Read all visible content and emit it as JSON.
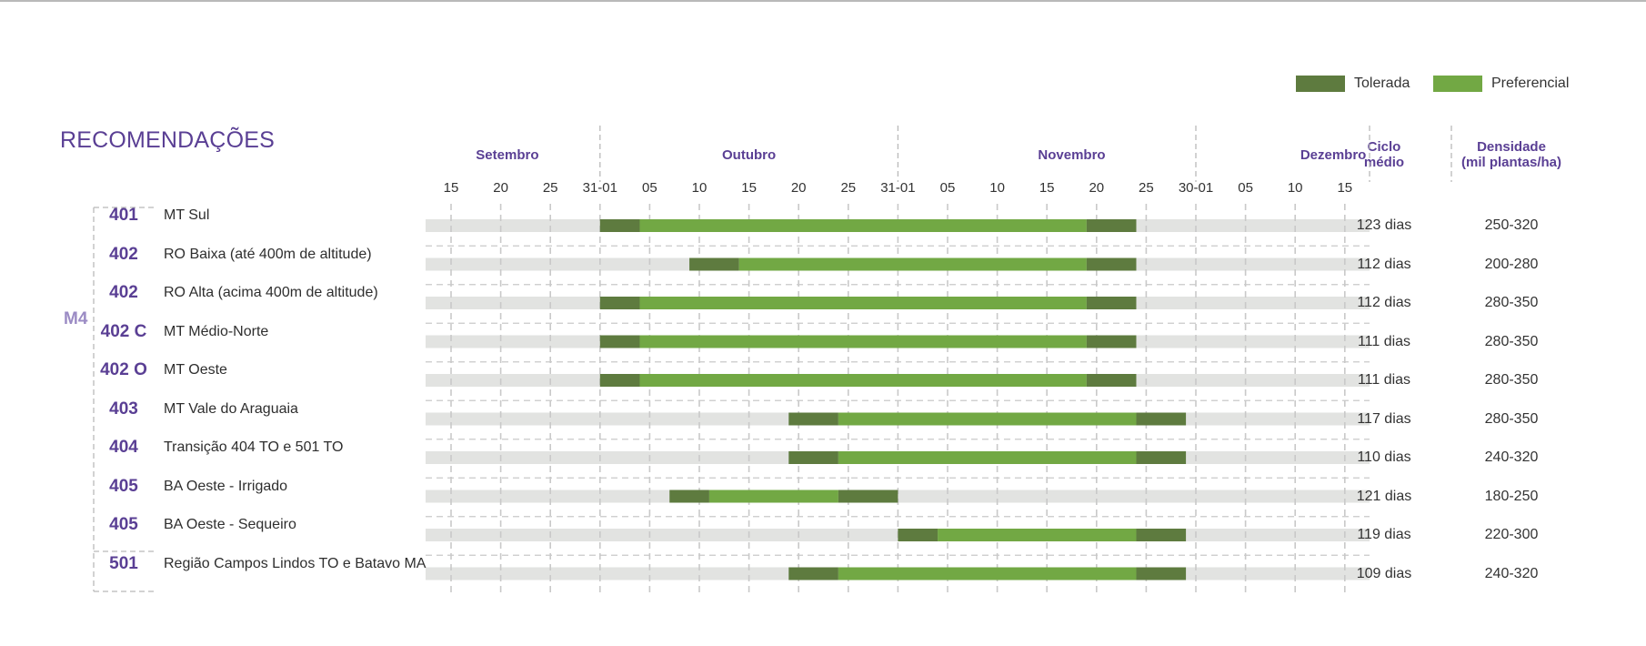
{
  "title": "RECOMENDAÇÕES",
  "legend": [
    {
      "label": "Tolerada",
      "color": "#5e7b3f"
    },
    {
      "label": "Preferencial",
      "color": "#72a844"
    }
  ],
  "columns": {
    "cycle": "Ciclo médio",
    "density": "Densidade (mil plantas/ha)"
  },
  "group_label": "M4",
  "colors": {
    "track": "#e2e3e1",
    "tolerated": "#5e7b3f",
    "preferred": "#72a844",
    "accent": "#5a3f94"
  },
  "chart_data": {
    "type": "bar",
    "months": [
      "Setembro",
      "Outubro",
      "Novembro",
      "Dezembro"
    ],
    "tick_labels": [
      "15",
      "20",
      "25",
      "31-01",
      "05",
      "10",
      "15",
      "20",
      "25",
      "31-01",
      "05",
      "10",
      "15",
      "20",
      "25",
      "30-01",
      "05",
      "10",
      "15"
    ],
    "rows": [
      {
        "code": "401",
        "region": "MT Sul",
        "cycle": "123 dias",
        "density": "250-320",
        "segments": [
          {
            "from": "01/10",
            "to": "05/10",
            "kind": "Tolerada"
          },
          {
            "from": "05/10",
            "to": "20/11",
            "kind": "Preferencial"
          },
          {
            "from": "20/11",
            "to": "25/11",
            "kind": "Tolerada"
          }
        ]
      },
      {
        "code": "402",
        "region": "RO Baixa (até 400m de altitude)",
        "cycle": "112 dias",
        "density": "200-280",
        "segments": [
          {
            "from": "10/10",
            "to": "15/10",
            "kind": "Tolerada"
          },
          {
            "from": "15/10",
            "to": "20/11",
            "kind": "Preferencial"
          },
          {
            "from": "20/11",
            "to": "25/11",
            "kind": "Tolerada"
          }
        ]
      },
      {
        "code": "402",
        "region": "RO Alta (acima 400m de altitude)",
        "cycle": "112 dias",
        "density": "280-350",
        "segments": [
          {
            "from": "01/10",
            "to": "05/10",
            "kind": "Tolerada"
          },
          {
            "from": "05/10",
            "to": "20/11",
            "kind": "Preferencial"
          },
          {
            "from": "20/11",
            "to": "25/11",
            "kind": "Tolerada"
          }
        ]
      },
      {
        "code": "402 C",
        "region": "MT Médio-Norte",
        "cycle": "111 dias",
        "density": "280-350",
        "segments": [
          {
            "from": "01/10",
            "to": "05/10",
            "kind": "Tolerada"
          },
          {
            "from": "05/10",
            "to": "20/11",
            "kind": "Preferencial"
          },
          {
            "from": "20/11",
            "to": "25/11",
            "kind": "Tolerada"
          }
        ]
      },
      {
        "code": "402 O",
        "region": "MT Oeste",
        "cycle": "111 dias",
        "density": "280-350",
        "segments": [
          {
            "from": "01/10",
            "to": "05/10",
            "kind": "Tolerada"
          },
          {
            "from": "05/10",
            "to": "20/11",
            "kind": "Preferencial"
          },
          {
            "from": "20/11",
            "to": "25/11",
            "kind": "Tolerada"
          }
        ]
      },
      {
        "code": "403",
        "region": "MT Vale do Araguaia",
        "cycle": "117 dias",
        "density": "280-350",
        "segments": [
          {
            "from": "20/10",
            "to": "25/10",
            "kind": "Tolerada"
          },
          {
            "from": "25/10",
            "to": "25/11",
            "kind": "Preferencial"
          },
          {
            "from": "25/11",
            "to": "30/11",
            "kind": "Tolerada"
          }
        ]
      },
      {
        "code": "404",
        "region": "Transição 404 TO e 501 TO",
        "cycle": "110 dias",
        "density": "240-320",
        "segments": [
          {
            "from": "20/10",
            "to": "25/10",
            "kind": "Tolerada"
          },
          {
            "from": "25/10",
            "to": "25/11",
            "kind": "Preferencial"
          },
          {
            "from": "25/11",
            "to": "30/11",
            "kind": "Tolerada"
          }
        ]
      },
      {
        "code": "405",
        "region": "BA Oeste - Irrigado",
        "cycle": "121 dias",
        "density": "180-250",
        "segments": [
          {
            "from": "08/10",
            "to": "12/10",
            "kind": "Tolerada"
          },
          {
            "from": "12/10",
            "to": "25/10",
            "kind": "Preferencial"
          },
          {
            "from": "25/10",
            "to": "31/10",
            "kind": "Tolerada"
          }
        ]
      },
      {
        "code": "405",
        "region": "BA Oeste - Sequeiro",
        "cycle": "119 dias",
        "density": "220-300",
        "segments": [
          {
            "from": "01/11",
            "to": "05/11",
            "kind": "Tolerada"
          },
          {
            "from": "05/11",
            "to": "25/11",
            "kind": "Preferencial"
          },
          {
            "from": "25/11",
            "to": "30/11",
            "kind": "Tolerada"
          }
        ]
      },
      {
        "code": "501",
        "region": "Região Campos Lindos TO e Batavo MA",
        "cycle": "109 dias",
        "density": "240-320",
        "segments": [
          {
            "from": "20/10",
            "to": "25/10",
            "kind": "Tolerada"
          },
          {
            "from": "25/10",
            "to": "25/11",
            "kind": "Preferencial"
          },
          {
            "from": "25/11",
            "to": "30/11",
            "kind": "Tolerada"
          }
        ]
      }
    ]
  }
}
